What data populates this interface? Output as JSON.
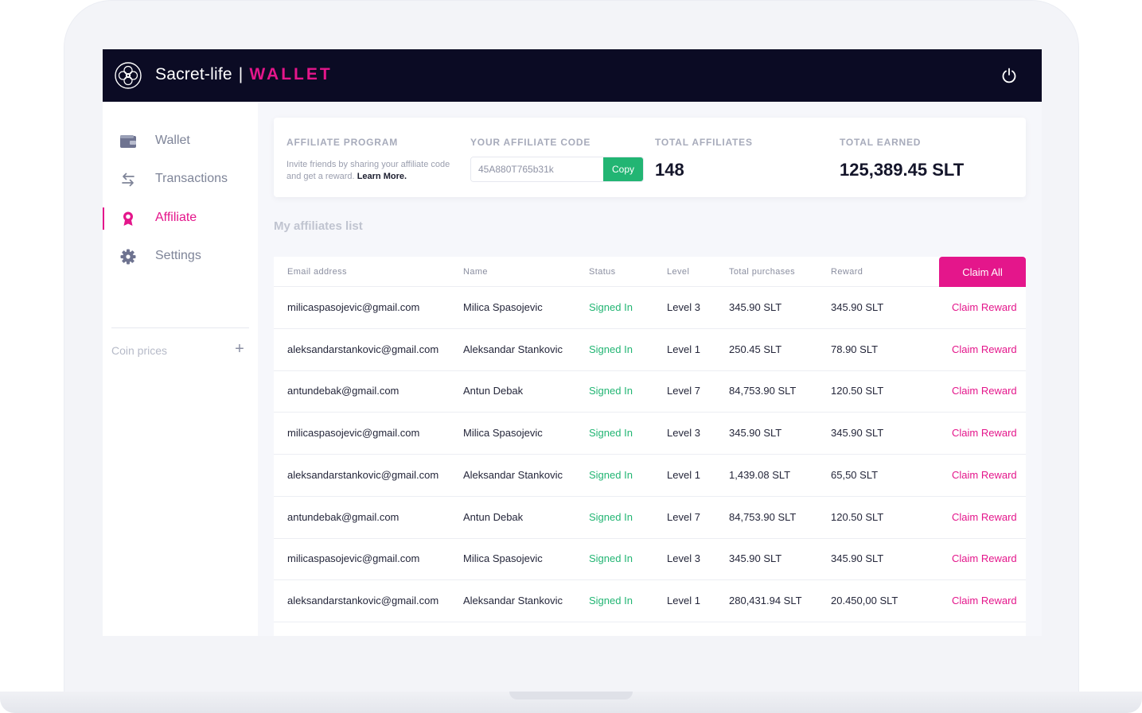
{
  "app": {
    "brand_name": "Sacret-life",
    "brand_separator": "|",
    "brand_product": "WALLET"
  },
  "sidebar": {
    "items": [
      {
        "label": "Wallet",
        "icon": "wallet-icon",
        "active": false
      },
      {
        "label": "Transactions",
        "icon": "transfer-arrows-icon",
        "active": false
      },
      {
        "label": "Affiliate",
        "icon": "ribbon-badge-icon",
        "active": true
      },
      {
        "label": "Settings",
        "icon": "gear-icon",
        "active": false
      }
    ],
    "coin_prices_label": "Coin prices",
    "coin_prices_add": "+"
  },
  "summary": {
    "program_title": "AFFILIATE PROGRAM",
    "program_text": "Invite friends by sharing your affiliate code and get a reward.",
    "learn_more": "Learn More.",
    "code_title": "YOUR AFFILIATE CODE",
    "code_value": "45A880T765b31k",
    "copy_label": "Copy",
    "total_affiliates_title": "TOTAL AFFILIATES",
    "total_affiliates_value": "148",
    "total_earned_title": "TOTAL EARNED",
    "total_earned_value": "125,389.45 SLT"
  },
  "affiliates": {
    "title": "My affiliates list",
    "claim_all_label": "Claim All",
    "columns": [
      "Email address",
      "Name",
      "Status",
      "Level",
      "Total purchases",
      "Reward"
    ],
    "rows": [
      {
        "email": "milicaspasojevic@gmail.com",
        "name": "Milica Spasojevic",
        "status": "Signed In",
        "level": "Level 3",
        "purchases": "345.90 SLT",
        "reward": "345.90 SLT",
        "action": "Claim Reward"
      },
      {
        "email": "aleksandarstankovic@gmail.com",
        "name": "Aleksandar Stankovic",
        "status": "Signed In",
        "level": "Level 1",
        "purchases": "250.45 SLT",
        "reward": "78.90 SLT",
        "action": "Claim Reward"
      },
      {
        "email": "antundebak@gmail.com",
        "name": "Antun Debak",
        "status": "Signed In",
        "level": "Level 7",
        "purchases": "84,753.90 SLT",
        "reward": "120.50 SLT",
        "action": "Claim Reward"
      },
      {
        "email": "milicaspasojevic@gmail.com",
        "name": "Milica Spasojevic",
        "status": "Signed In",
        "level": "Level 3",
        "purchases": "345.90 SLT",
        "reward": "345.90 SLT",
        "action": "Claim Reward"
      },
      {
        "email": "aleksandarstankovic@gmail.com",
        "name": "Aleksandar Stankovic",
        "status": "Signed In",
        "level": "Level 1",
        "purchases": "1,439.08 SLT",
        "reward": "65,50 SLT",
        "action": "Claim Reward"
      },
      {
        "email": "antundebak@gmail.com",
        "name": "Antun Debak",
        "status": "Signed In",
        "level": "Level 7",
        "purchases": "84,753.90 SLT",
        "reward": "120.50 SLT",
        "action": "Claim Reward"
      },
      {
        "email": "milicaspasojevic@gmail.com",
        "name": "Milica Spasojevic",
        "status": "Signed In",
        "level": "Level 3",
        "purchases": "345.90 SLT",
        "reward": "345.90 SLT",
        "action": "Claim Reward"
      },
      {
        "email": "aleksandarstankovic@gmail.com",
        "name": "Aleksandar Stankovic",
        "status": "Signed In",
        "level": "Level 1",
        "purchases": "280,431.94 SLT",
        "reward": "20.450,00 SLT",
        "action": "Claim Reward"
      }
    ]
  },
  "colors": {
    "accent": "#e4168b",
    "success": "#22b573",
    "header_bg": "#0b0b24"
  },
  "icons": {
    "logo": "flower-logo-icon",
    "power": "power-icon"
  }
}
